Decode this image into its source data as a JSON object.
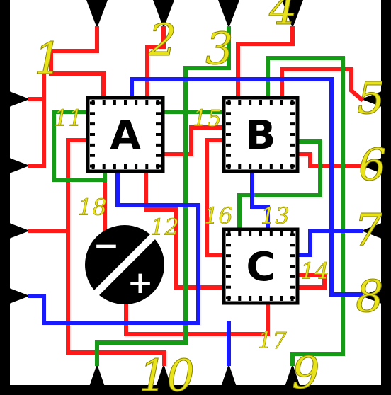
{
  "colors": {
    "background": "#ffffff",
    "border": "#000000",
    "wire_red": "#ff1a1a",
    "wire_green": "#169b16",
    "wire_blue": "#1a1aff",
    "label": "#e8e21a"
  },
  "chips": {
    "a": {
      "label": "A"
    },
    "b": {
      "label": "B"
    },
    "c": {
      "label": "C"
    }
  },
  "battery": {
    "icon": "battery-polarity-icon",
    "minus": "−",
    "plus": "+"
  },
  "pin_labels": {
    "p1": "1",
    "p2": "2",
    "p3": "3",
    "p4": "4",
    "p5": "5",
    "p6": "6",
    "p7": "7",
    "p8": "8",
    "p9": "9",
    "p10": "10"
  },
  "node_labels": {
    "n11": "11",
    "n12": "12",
    "n13": "13",
    "n14": "14",
    "n15": "15",
    "n16": "16",
    "n17": "17",
    "n18": "18"
  }
}
